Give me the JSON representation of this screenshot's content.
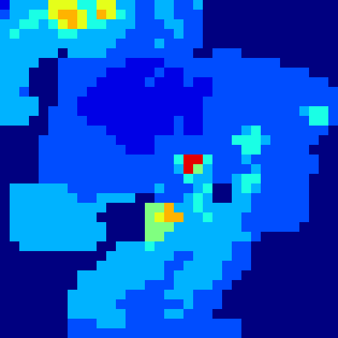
{
  "chart_data": {
    "type": "heatmap",
    "tick_labels": false,
    "color_range": [
      0,
      10
    ],
    "cells": [
      [
        1,
        3,
        3,
        3,
        3,
        6,
        6,
        6,
        4,
        4,
        6,
        6,
        3,
        3,
        2,
        2,
        3,
        3,
        2,
        2,
        3,
        0,
        0,
        0,
        0,
        0,
        0,
        0,
        0,
        0,
        0,
        0,
        0,
        0,
        0
      ],
      [
        2,
        3,
        3,
        4,
        4,
        6,
        7,
        7,
        6,
        4,
        7,
        6,
        4,
        3,
        2,
        2,
        3,
        3,
        2,
        2,
        2,
        0,
        0,
        0,
        0,
        0,
        0,
        0,
        0,
        0,
        0,
        0,
        0,
        0,
        0
      ],
      [
        3,
        3,
        4,
        4,
        3,
        4,
        6,
        7,
        6,
        4,
        4,
        3,
        3,
        3,
        2,
        2,
        2,
        3,
        3,
        2,
        2,
        0,
        0,
        0,
        0,
        0,
        0,
        0,
        0,
        0,
        0,
        0,
        0,
        0,
        0
      ],
      [
        3,
        4,
        3,
        3,
        3,
        3,
        4,
        4,
        3,
        3,
        3,
        3,
        3,
        2,
        2,
        2,
        2,
        2,
        3,
        2,
        2,
        0,
        0,
        0,
        0,
        0,
        0,
        0,
        0,
        0,
        0,
        0,
        0,
        0,
        0
      ],
      [
        3,
        3,
        3,
        3,
        3,
        3,
        3,
        3,
        3,
        3,
        3,
        3,
        2,
        2,
        2,
        2,
        3,
        2,
        2,
        2,
        2,
        0,
        0,
        0,
        0,
        0,
        0,
        0,
        0,
        0,
        0,
        0,
        0,
        0,
        0
      ],
      [
        3,
        3,
        3,
        3,
        3,
        3,
        0,
        3,
        3,
        3,
        3,
        2,
        2,
        2,
        2,
        2,
        2,
        2,
        2,
        2,
        0,
        0,
        2,
        2,
        2,
        0,
        0,
        0,
        0,
        0,
        0,
        0,
        0,
        0,
        0
      ],
      [
        3,
        3,
        3,
        3,
        0,
        0,
        2,
        2,
        2,
        2,
        2,
        2,
        2,
        1,
        1,
        1,
        1,
        2,
        2,
        2,
        2,
        2,
        2,
        2,
        2,
        2,
        2,
        2,
        2,
        0,
        0,
        0,
        0,
        0,
        0
      ],
      [
        3,
        3,
        3,
        0,
        0,
        0,
        2,
        2,
        2,
        2,
        2,
        1,
        1,
        1,
        1,
        1,
        2,
        1,
        1,
        2,
        2,
        2,
        2,
        2,
        2,
        2,
        2,
        2,
        2,
        2,
        2,
        2,
        0,
        0,
        0
      ],
      [
        3,
        3,
        3,
        0,
        0,
        0,
        2,
        2,
        2,
        2,
        1,
        1,
        1,
        1,
        1,
        2,
        1,
        1,
        1,
        2,
        1,
        1,
        2,
        2,
        2,
        2,
        2,
        2,
        2,
        2,
        2,
        2,
        2,
        2,
        0
      ],
      [
        3,
        3,
        2,
        0,
        0,
        0,
        2,
        2,
        2,
        1,
        1,
        1,
        1,
        1,
        1,
        1,
        1,
        1,
        1,
        1,
        1,
        1,
        2,
        2,
        2,
        2,
        2,
        2,
        2,
        2,
        2,
        2,
        2,
        2,
        2
      ],
      [
        3,
        3,
        3,
        3,
        0,
        0,
        2,
        2,
        1,
        1,
        1,
        1,
        1,
        1,
        1,
        1,
        1,
        1,
        1,
        1,
        1,
        2,
        2,
        2,
        2,
        2,
        2,
        2,
        2,
        2,
        2,
        2,
        2,
        2,
        2
      ],
      [
        3,
        3,
        3,
        3,
        0,
        2,
        2,
        2,
        1,
        1,
        1,
        1,
        1,
        1,
        1,
        1,
        1,
        1,
        1,
        1,
        1,
        2,
        2,
        2,
        2,
        2,
        2,
        2,
        2,
        2,
        2,
        3,
        4,
        4,
        2
      ],
      [
        3,
        3,
        3,
        0,
        0,
        2,
        2,
        2,
        2,
        1,
        1,
        1,
        1,
        1,
        1,
        1,
        1,
        1,
        2,
        1,
        1,
        2,
        2,
        2,
        2,
        2,
        2,
        2,
        2,
        2,
        2,
        2,
        4,
        4,
        2
      ],
      [
        0,
        0,
        0,
        0,
        0,
        2,
        2,
        2,
        2,
        2,
        2,
        1,
        1,
        1,
        1,
        1,
        1,
        1,
        2,
        1,
        1,
        2,
        2,
        2,
        2,
        3,
        4,
        2,
        2,
        2,
        2,
        2,
        2,
        2,
        0
      ],
      [
        0,
        0,
        0,
        0,
        2,
        2,
        2,
        2,
        2,
        2,
        2,
        2,
        1,
        1,
        1,
        1,
        2,
        2,
        2,
        2,
        2,
        2,
        2,
        2,
        4,
        4,
        4,
        3,
        2,
        2,
        2,
        2,
        2,
        0,
        0
      ],
      [
        0,
        0,
        0,
        0,
        2,
        2,
        2,
        2,
        2,
        2,
        2,
        2,
        2,
        1,
        1,
        1,
        2,
        2,
        2,
        2,
        2,
        2,
        2,
        2,
        2,
        4,
        4,
        2,
        2,
        2,
        2,
        2,
        0,
        0,
        0
      ],
      [
        0,
        0,
        0,
        0,
        2,
        2,
        2,
        2,
        2,
        2,
        2,
        2,
        2,
        2,
        2,
        2,
        2,
        2,
        4,
        9,
        9,
        4,
        2,
        2,
        2,
        3,
        2,
        2,
        2,
        2,
        2,
        2,
        2,
        0,
        0
      ],
      [
        0,
        0,
        0,
        0,
        2,
        2,
        2,
        2,
        2,
        2,
        2,
        2,
        2,
        2,
        2,
        2,
        2,
        2,
        3,
        9,
        5,
        3,
        2,
        2,
        2,
        2,
        3,
        2,
        2,
        2,
        2,
        2,
        2,
        0,
        0
      ],
      [
        0,
        0,
        0,
        0,
        2,
        2,
        2,
        2,
        2,
        2,
        2,
        2,
        2,
        2,
        2,
        2,
        2,
        2,
        2,
        4,
        3,
        3,
        2,
        2,
        3,
        4,
        4,
        2,
        2,
        2,
        2,
        2,
        0,
        0,
        0
      ],
      [
        0,
        3,
        3,
        3,
        3,
        3,
        3,
        2,
        2,
        2,
        2,
        2,
        2,
        2,
        2,
        2,
        3,
        2,
        2,
        2,
        3,
        4,
        0,
        0,
        3,
        4,
        3,
        2,
        2,
        2,
        2,
        2,
        0,
        0,
        0
      ],
      [
        0,
        3,
        3,
        3,
        3,
        3,
        3,
        3,
        2,
        2,
        3,
        3,
        3,
        3,
        0,
        0,
        2,
        2,
        2,
        3,
        4,
        3,
        0,
        0,
        3,
        3,
        2,
        2,
        2,
        2,
        2,
        2,
        0,
        0,
        0
      ],
      [
        0,
        3,
        3,
        3,
        3,
        3,
        3,
        3,
        3,
        3,
        3,
        0,
        0,
        0,
        0,
        5,
        5,
        7,
        3,
        3,
        4,
        3,
        3,
        3,
        3,
        3,
        2,
        2,
        2,
        2,
        2,
        2,
        0,
        0,
        0
      ],
      [
        0,
        3,
        3,
        3,
        3,
        3,
        3,
        3,
        3,
        3,
        0,
        0,
        0,
        0,
        0,
        5,
        6,
        7,
        7,
        3,
        3,
        4,
        3,
        3,
        3,
        2,
        2,
        2,
        2,
        2,
        2,
        2,
        0,
        0,
        0
      ],
      [
        0,
        3,
        3,
        3,
        3,
        3,
        3,
        3,
        3,
        3,
        3,
        0,
        0,
        0,
        0,
        5,
        5,
        5,
        3,
        3,
        3,
        3,
        3,
        3,
        3,
        2,
        2,
        2,
        2,
        2,
        2,
        0,
        0,
        0,
        0
      ],
      [
        0,
        3,
        3,
        3,
        3,
        3,
        3,
        3,
        3,
        3,
        3,
        0,
        0,
        0,
        0,
        5,
        5,
        3,
        3,
        3,
        3,
        3,
        3,
        3,
        3,
        3,
        2,
        0,
        0,
        0,
        0,
        0,
        0,
        0,
        0
      ],
      [
        0,
        0,
        3,
        3,
        3,
        3,
        3,
        3,
        3,
        3,
        0,
        0,
        3,
        3,
        3,
        4,
        3,
        3,
        3,
        3,
        3,
        3,
        3,
        3,
        2,
        2,
        0,
        0,
        0,
        0,
        0,
        0,
        0,
        0,
        0
      ],
      [
        0,
        0,
        0,
        0,
        0,
        0,
        0,
        0,
        0,
        0,
        0,
        3,
        3,
        3,
        3,
        3,
        3,
        3,
        2,
        2,
        3,
        3,
        3,
        3,
        2,
        2,
        0,
        0,
        0,
        0,
        0,
        0,
        0,
        0,
        0
      ],
      [
        0,
        0,
        0,
        0,
        0,
        0,
        0,
        0,
        0,
        0,
        3,
        3,
        3,
        3,
        3,
        3,
        3,
        2,
        2,
        3,
        3,
        3,
        3,
        2,
        2,
        2,
        0,
        0,
        0,
        0,
        0,
        0,
        0,
        0,
        0
      ],
      [
        0,
        0,
        0,
        0,
        0,
        0,
        0,
        0,
        3,
        3,
        3,
        3,
        3,
        3,
        3,
        3,
        3,
        2,
        3,
        3,
        3,
        3,
        3,
        2,
        2,
        0,
        0,
        0,
        0,
        0,
        0,
        0,
        0,
        0,
        0
      ],
      [
        0,
        0,
        0,
        0,
        0,
        0,
        0,
        0,
        3,
        3,
        3,
        3,
        3,
        3,
        3,
        2,
        2,
        2,
        3,
        3,
        3,
        3,
        2,
        2,
        0,
        0,
        0,
        0,
        0,
        0,
        0,
        0,
        0,
        0,
        0
      ],
      [
        0,
        0,
        0,
        0,
        0,
        0,
        0,
        3,
        3,
        3,
        3,
        3,
        3,
        2,
        2,
        2,
        2,
        3,
        3,
        3,
        2,
        2,
        2,
        0,
        0,
        0,
        0,
        0,
        0,
        0,
        0,
        0,
        0,
        0,
        0
      ],
      [
        0,
        0,
        0,
        0,
        0,
        0,
        0,
        3,
        3,
        3,
        3,
        3,
        2,
        2,
        2,
        2,
        2,
        2,
        2,
        3,
        2,
        2,
        2,
        0,
        0,
        0,
        0,
        0,
        0,
        0,
        0,
        0,
        0,
        0,
        0
      ],
      [
        0,
        0,
        0,
        0,
        0,
        0,
        0,
        3,
        3,
        3,
        3,
        3,
        3,
        2,
        2,
        2,
        2,
        3,
        3,
        2,
        2,
        2,
        0,
        0,
        0,
        0,
        0,
        0,
        0,
        0,
        0,
        0,
        0,
        0,
        0
      ],
      [
        0,
        0,
        0,
        0,
        0,
        0,
        0,
        2,
        2,
        2,
        3,
        3,
        3,
        2,
        2,
        2,
        2,
        2,
        2,
        2,
        2,
        2,
        2,
        2,
        2,
        0,
        0,
        0,
        0,
        0,
        0,
        0,
        0,
        0,
        0
      ],
      [
        0,
        0,
        0,
        0,
        0,
        0,
        0,
        2,
        2,
        2,
        2,
        2,
        2,
        2,
        2,
        2,
        2,
        2,
        2,
        2,
        2,
        2,
        2,
        2,
        2,
        0,
        0,
        0,
        0,
        0,
        0,
        0,
        0,
        0,
        0
      ]
    ]
  }
}
